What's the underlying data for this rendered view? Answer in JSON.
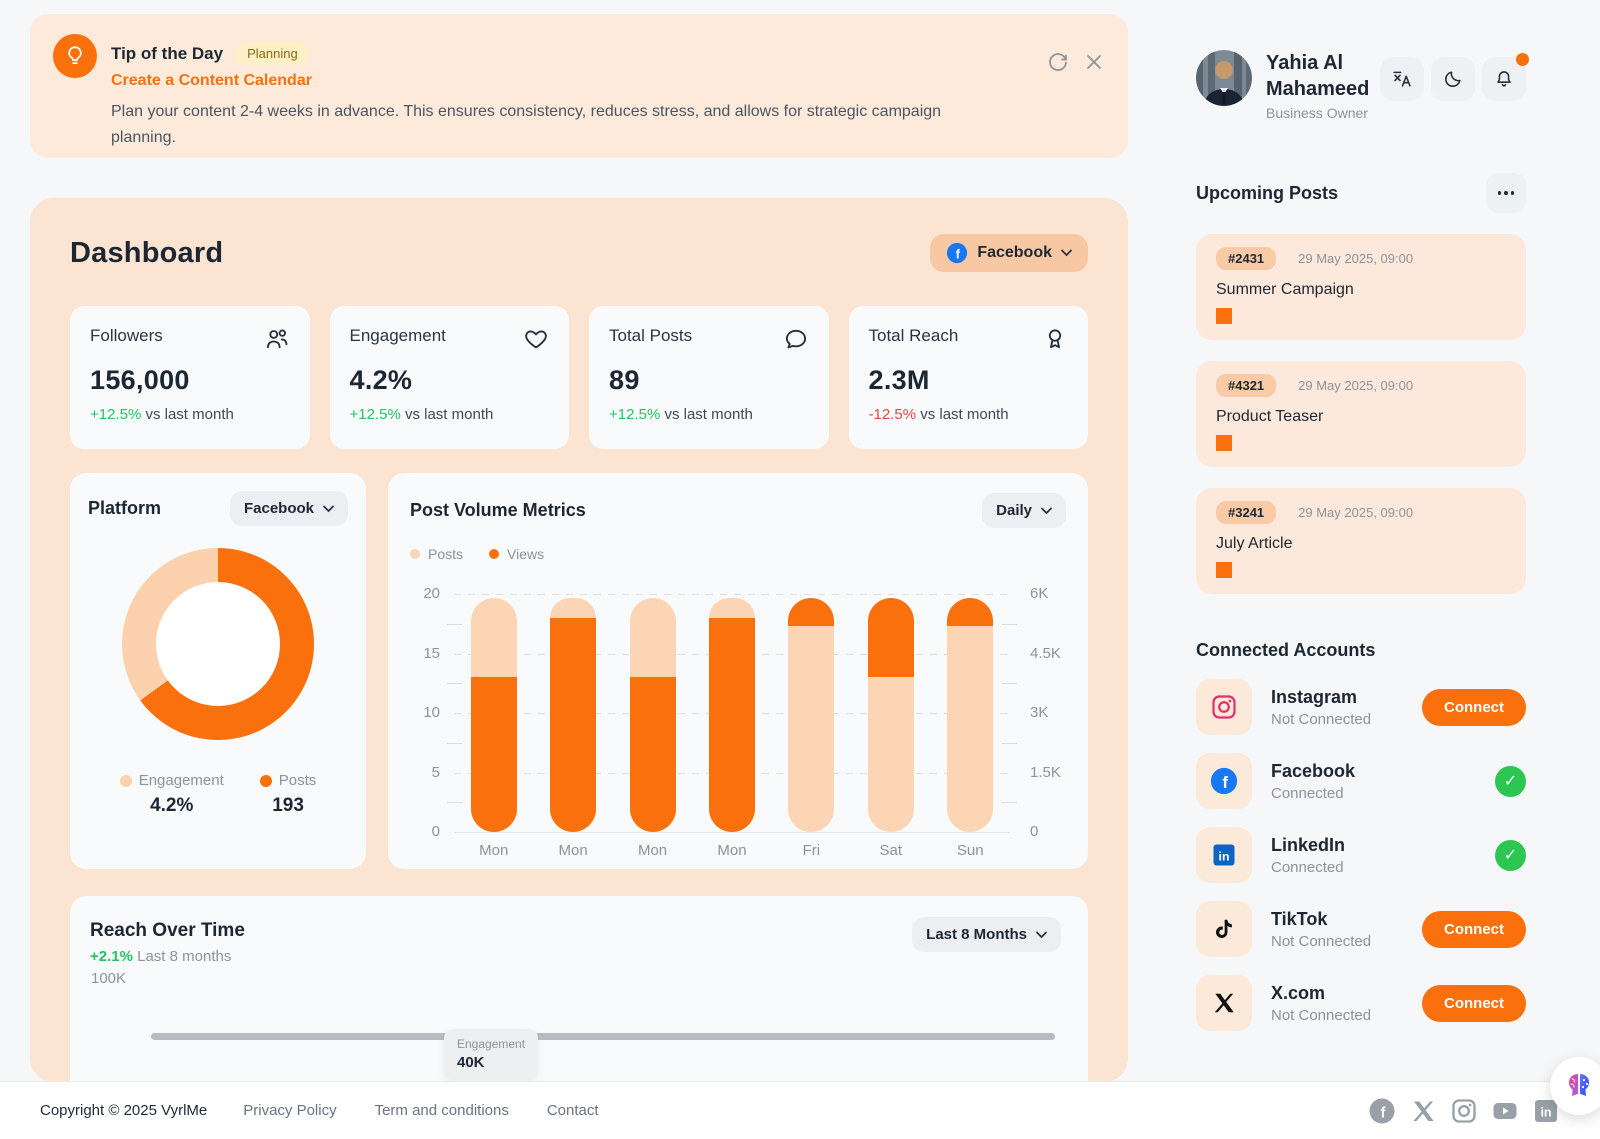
{
  "tip": {
    "title": "Tip of the Day",
    "badge": "Planning",
    "subtitle": "Create a Content Calendar",
    "description": "Plan your content 2-4 weeks in advance. This ensures consistency, reduces stress, and allows for strategic campaign planning.",
    "icons": [
      "lightbulb-icon",
      "refresh-icon",
      "close-icon"
    ]
  },
  "dashboard": {
    "title": "Dashboard",
    "platform_selector": "Facebook",
    "stats": [
      {
        "label": "Followers",
        "value": "156,000",
        "delta": "+12.5%",
        "suffix": " vs last month",
        "icon": "users-icon"
      },
      {
        "label": "Engagement",
        "value": "4.2%",
        "delta": "+12.5%",
        "suffix": " vs last month",
        "icon": "heart-icon"
      },
      {
        "label": "Total Posts",
        "value": "89",
        "delta": "+12.5%",
        "suffix": " vs last month",
        "icon": "chat-icon"
      },
      {
        "label": "Total Reach",
        "value": "2.3M",
        "delta": "-12.5%",
        "suffix": " vs last month",
        "icon": "medal-icon"
      }
    ],
    "platform_card": {
      "title": "Platform",
      "selector": "Facebook",
      "legend": [
        {
          "label": "Engagement",
          "value": "4.2%",
          "color": "#fbd2ad"
        },
        {
          "label": "Posts",
          "value": "193",
          "color": "#f9700d"
        }
      ]
    },
    "post_volume": {
      "title": "Post Volume Metrics",
      "selector": "Daily"
    },
    "reach": {
      "title": "Reach Over Time",
      "change": "+2.1%",
      "period": " Last 8 months",
      "selector": "Last 8 Months",
      "y_tick": "100K",
      "tooltip": {
        "label": "Engagement",
        "value": "40K"
      }
    }
  },
  "chart_data": [
    {
      "type": "pie",
      "donut": true,
      "title": "Platform",
      "labels": [
        "Posts",
        "Engagement"
      ],
      "values": [
        65,
        35
      ],
      "display_values": [
        "193",
        "4.2%"
      ],
      "colors": [
        "#f9700d",
        "#fbd2ad"
      ],
      "legend_position": "bottom"
    },
    {
      "type": "bar",
      "stacked": true,
      "title": "Post Volume Metrics",
      "period_selector": "Daily",
      "series": [
        {
          "name": "Posts",
          "color": "#fcd6b4"
        },
        {
          "name": "Views",
          "color": "#f9700d"
        }
      ],
      "categories": [
        "Mon",
        "Mon",
        "Mon",
        "Mon",
        "Fri",
        "Sat",
        "Sun"
      ],
      "left_axis": {
        "ticks": [
          0,
          5,
          10,
          15,
          20
        ],
        "range": [
          0,
          20
        ]
      },
      "right_axis": {
        "ticks": [
          "0",
          "1.5K",
          "3K",
          "4.5K",
          "6K"
        ]
      },
      "segments_order": "bottom_to_top",
      "grid": "dashed-horizontal",
      "bars": [
        {
          "label": "Mon",
          "segments": [
            {
              "name": "Views",
              "value": 13
            },
            {
              "name": "Posts",
              "value": 6.7
            }
          ]
        },
        {
          "label": "Mon",
          "segments": [
            {
              "name": "Views",
              "value": 18
            },
            {
              "name": "Posts",
              "value": 1.7
            }
          ]
        },
        {
          "label": "Mon",
          "segments": [
            {
              "name": "Views",
              "value": 13
            },
            {
              "name": "Posts",
              "value": 6.7
            }
          ]
        },
        {
          "label": "Mon",
          "segments": [
            {
              "name": "Views",
              "value": 18
            },
            {
              "name": "Posts",
              "value": 1.7
            }
          ]
        },
        {
          "label": "Fri",
          "segments": [
            {
              "name": "Posts",
              "value": 17.3
            },
            {
              "name": "Views",
              "value": 2.4
            }
          ]
        },
        {
          "label": "Sat",
          "segments": [
            {
              "name": "Posts",
              "value": 13
            },
            {
              "name": "Views",
              "value": 6.7
            }
          ]
        },
        {
          "label": "Sun",
          "segments": [
            {
              "name": "Posts",
              "value": 17.3
            },
            {
              "name": "Views",
              "value": 2.4
            }
          ]
        }
      ]
    },
    {
      "type": "line",
      "title": "Reach Over Time",
      "change": "+2.1%",
      "period": "Last 8 months",
      "selector": "Last 8 Months",
      "y_ticks_visible": [
        "100K"
      ],
      "line_color": "#b6bcc2",
      "tooltip": {
        "series": "Engagement",
        "value": "40K"
      }
    }
  ],
  "sidebar": {
    "user": {
      "name": "Yahia Al Mahameed",
      "role": "Business Owner"
    },
    "header_icons": [
      "translate-icon",
      "dark-mode-icon",
      "notifications-icon"
    ],
    "upcoming": {
      "title": "Upcoming Posts",
      "posts": [
        {
          "id": "#2431",
          "datetime": "29 May 2025, 09:00",
          "title": "Summer Campaign"
        },
        {
          "id": "#4321",
          "datetime": "29 May 2025, 09:00",
          "title": "Product Teaser"
        },
        {
          "id": "#3241",
          "datetime": "29 May 2025, 09:00",
          "title": "July Article"
        }
      ]
    },
    "accounts": {
      "title": "Connected Accounts",
      "items": [
        {
          "name": "Instagram",
          "status": "Not Connected",
          "action": "Connect",
          "icon": "instagram-icon"
        },
        {
          "name": "Facebook",
          "status": "Connected",
          "action": "",
          "icon": "facebook-icon"
        },
        {
          "name": "LinkedIn",
          "status": "Connected",
          "action": "",
          "icon": "linkedin-icon"
        },
        {
          "name": "TikTok",
          "status": "Not Connected",
          "action": "Connect",
          "icon": "tiktok-icon"
        },
        {
          "name": "X.com",
          "status": "Not Connected",
          "action": "Connect",
          "icon": "x-icon"
        }
      ]
    }
  },
  "footer": {
    "copyright": "Copyright © 2025 VyrlMe",
    "links": [
      "Privacy Policy",
      "Term and conditions",
      "Contact"
    ],
    "social": [
      "facebook",
      "x",
      "instagram",
      "youtube",
      "linkedin"
    ]
  }
}
